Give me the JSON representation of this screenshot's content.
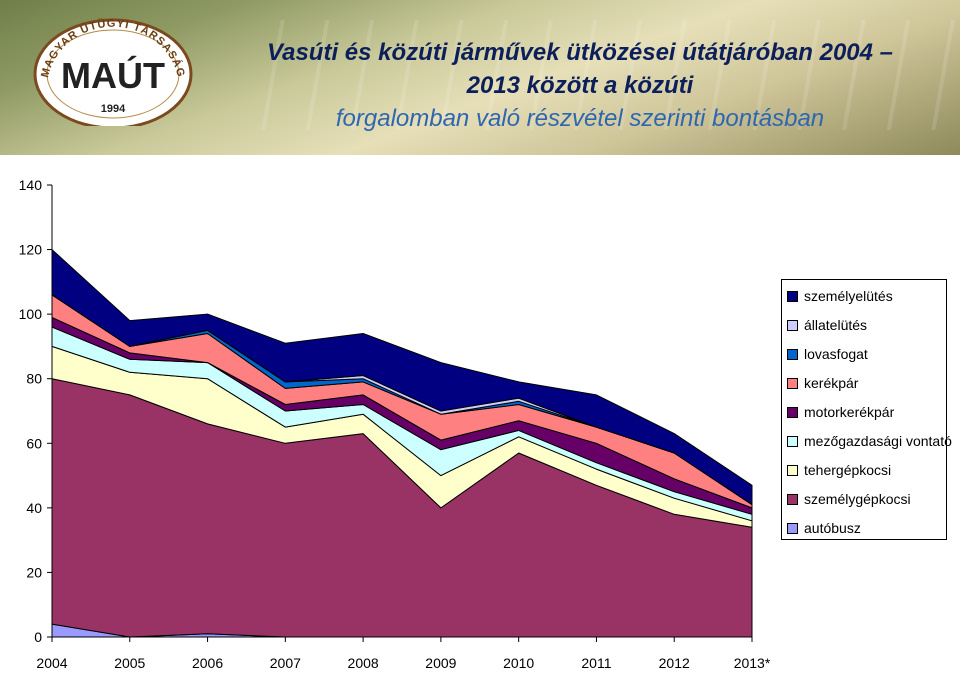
{
  "header": {
    "title_line1": "Vasúti és közúti járművek ütközései útátjáróban 2004 –",
    "title_line2": "2013 között a közúti",
    "title_line3": "forgalomban való részvétel szerinti bontásban",
    "logo_text_top": "MAGYAR ÚTÜGYI TÁRSASÁG",
    "logo_text_main": "MAÚT",
    "logo_year": "1994"
  },
  "chart_data": {
    "type": "area",
    "stacked": true,
    "categories": [
      "2004",
      "2005",
      "2006",
      "2007",
      "2008",
      "2009",
      "2010",
      "2011",
      "2012",
      "2013*"
    ],
    "ylim": [
      0,
      140
    ],
    "yticks": [
      0,
      20,
      40,
      60,
      80,
      100,
      120,
      140
    ],
    "series": [
      {
        "name": "autóbusz",
        "color": "#9999ff",
        "values": [
          4,
          0,
          1,
          0,
          0,
          0,
          0,
          0,
          0,
          0
        ]
      },
      {
        "name": "személygépkocsi",
        "color": "#993366",
        "values": [
          76,
          75,
          65,
          60,
          63,
          40,
          57,
          47,
          38,
          34
        ]
      },
      {
        "name": "tehergépkocsi",
        "color": "#ffffcc",
        "values": [
          10,
          7,
          14,
          5,
          6,
          10,
          5,
          5,
          5,
          2
        ]
      },
      {
        "name": "mezőgazdasági vontató",
        "color": "#ccffff",
        "values": [
          6,
          4,
          5,
          5,
          3,
          8,
          2,
          2,
          2,
          2
        ]
      },
      {
        "name": "motorkerékpár",
        "color": "#660066",
        "values": [
          3,
          2,
          0,
          2,
          3,
          3,
          3,
          6,
          4,
          2
        ]
      },
      {
        "name": "kerékpár",
        "color": "#ff8080",
        "values": [
          7,
          2,
          9,
          5,
          4,
          8,
          5,
          5,
          8,
          1
        ]
      },
      {
        "name": "lovasfogat",
        "color": "#0066cc",
        "values": [
          0,
          0,
          1,
          2,
          1,
          0,
          1,
          0,
          0,
          0
        ]
      },
      {
        "name": "állatelütés",
        "color": "#ccccff",
        "values": [
          0,
          0,
          0,
          0,
          1,
          1,
          1,
          0,
          0,
          0
        ]
      },
      {
        "name": "személyelütés",
        "color": "#000080",
        "values": [
          14,
          8,
          5,
          12,
          13,
          15,
          5,
          10,
          6,
          6
        ]
      }
    ],
    "legend_order": [
      "személyelütés",
      "állatelütés",
      "lovasfogat",
      "kerékpár",
      "motorkerékpár",
      "mezőgazdasági vontató",
      "tehergépkocsi",
      "személygépkocsi",
      "autóbusz"
    ],
    "legend_position": "right"
  }
}
